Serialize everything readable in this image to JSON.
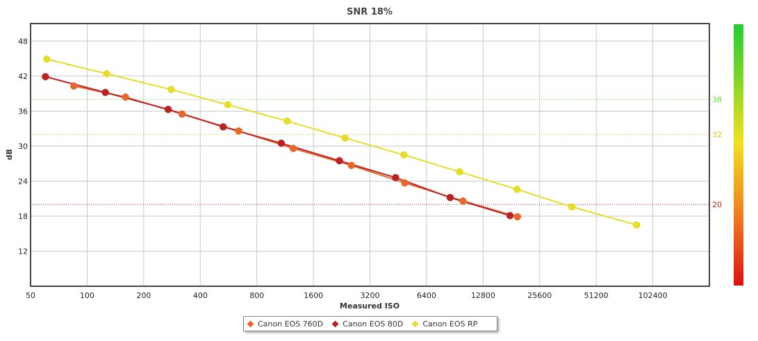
{
  "chart_data": {
    "type": "line",
    "title": "SNR 18%",
    "xlabel": "Measured ISO",
    "ylabel": "dB",
    "x_scale": "log2",
    "xlim": [
      50,
      204800
    ],
    "ylim": [
      6,
      51
    ],
    "x_ticks": [
      50,
      100,
      200,
      400,
      800,
      1600,
      3200,
      6400,
      12800,
      25600,
      51200,
      102400
    ],
    "y_ticks": [
      12,
      18,
      24,
      30,
      36,
      42,
      48
    ],
    "reference_lines": [
      {
        "value": 38,
        "label": "38",
        "color": "#66dd44"
      },
      {
        "value": 32,
        "label": "32",
        "color": "#e6c619"
      },
      {
        "value": 20,
        "label": "20",
        "color": "#cc2222"
      }
    ],
    "series": [
      {
        "name": "Canon EOS 760D",
        "color": "#e8672a",
        "points": [
          [
            85,
            40.3
          ],
          [
            160,
            38.4
          ],
          [
            320,
            35.5
          ],
          [
            640,
            32.6
          ],
          [
            1250,
            29.6
          ],
          [
            2550,
            26.7
          ],
          [
            4900,
            23.7
          ],
          [
            10000,
            20.6
          ],
          [
            19500,
            17.9
          ]
        ]
      },
      {
        "name": "Canon EOS 80D",
        "color": "#bb2222",
        "points": [
          [
            60,
            41.9
          ],
          [
            125,
            39.2
          ],
          [
            270,
            36.3
          ],
          [
            530,
            33.3
          ],
          [
            1080,
            30.5
          ],
          [
            2200,
            27.5
          ],
          [
            4380,
            24.6
          ],
          [
            8550,
            21.2
          ],
          [
            17800,
            18.1
          ]
        ]
      },
      {
        "name": "Canon EOS RP",
        "color": "#e6dc2a",
        "points": [
          [
            61,
            44.9
          ],
          [
            127,
            42.4
          ],
          [
            280,
            39.7
          ],
          [
            560,
            37.1
          ],
          [
            1160,
            34.3
          ],
          [
            2360,
            31.4
          ],
          [
            4850,
            28.5
          ],
          [
            9600,
            25.6
          ],
          [
            19400,
            22.6
          ],
          [
            38000,
            19.6
          ],
          [
            84000,
            16.5
          ]
        ]
      }
    ],
    "legend_position": "bottom-center"
  }
}
